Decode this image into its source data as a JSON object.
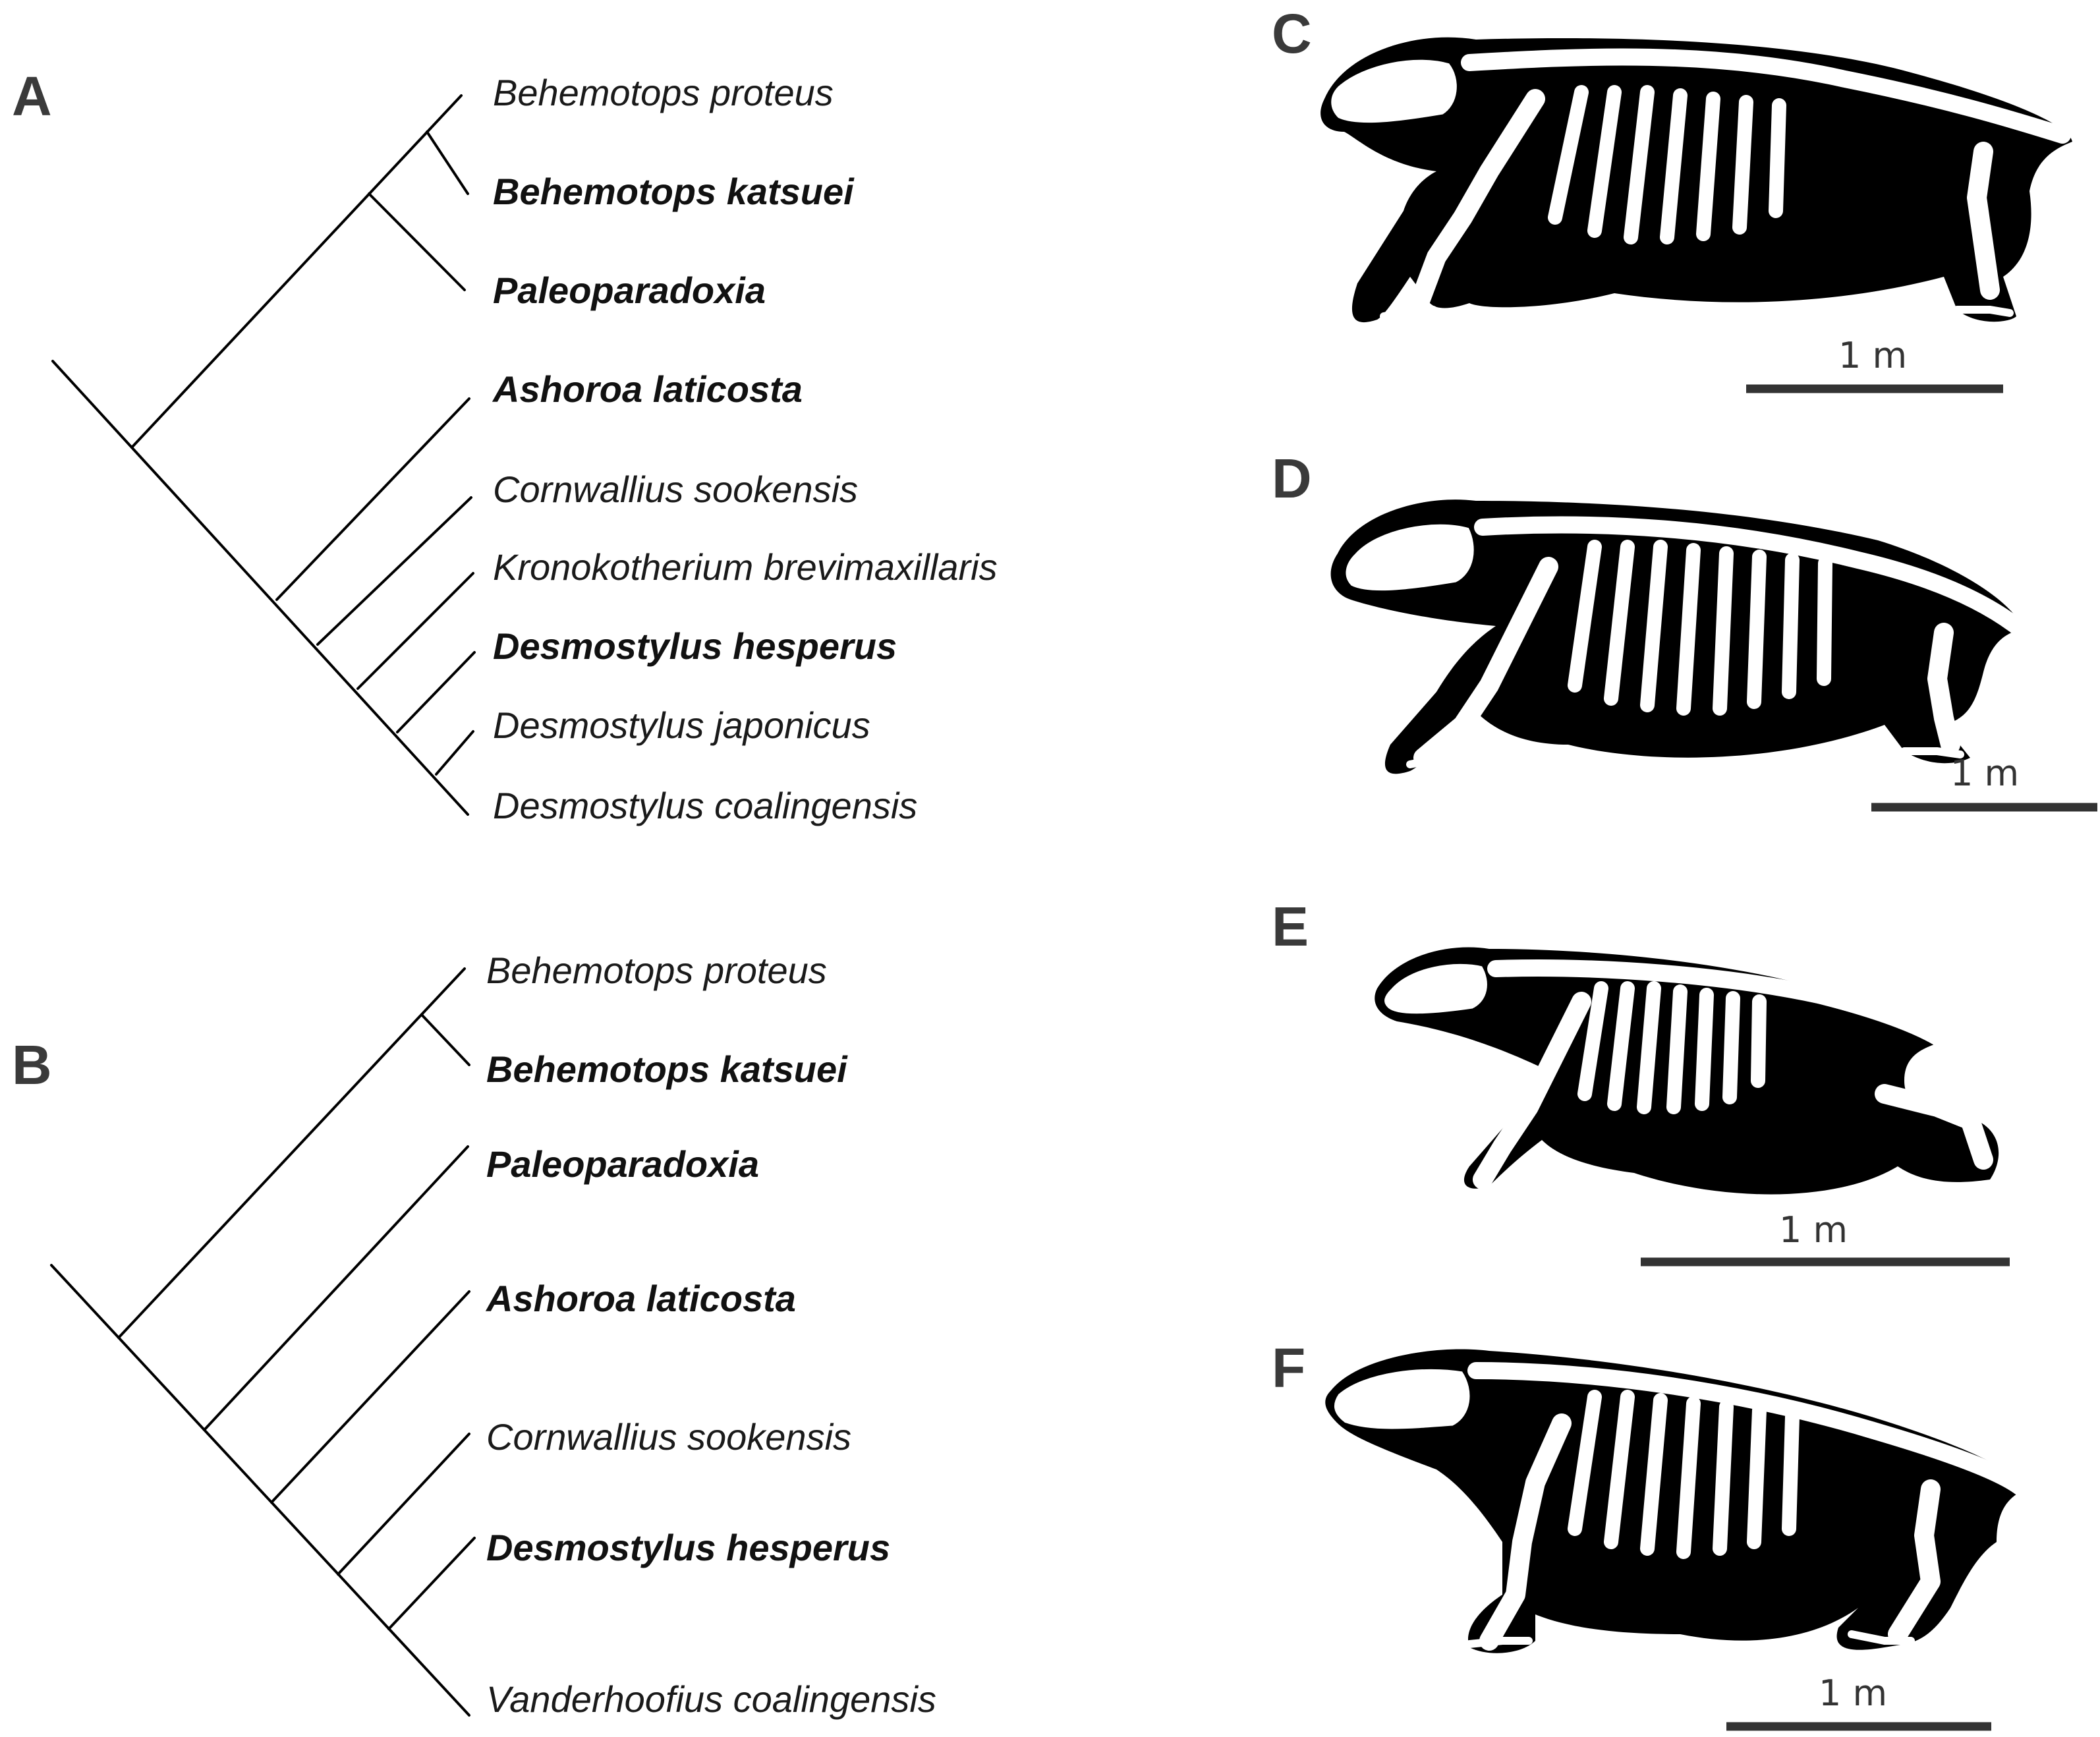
{
  "panels": {
    "A": "A",
    "B": "B",
    "C": "C",
    "D": "D",
    "E": "E",
    "F": "F"
  },
  "tree_a": {
    "taxa": [
      {
        "name": "Behemotops proteus",
        "bold": false
      },
      {
        "name": "Behemotops katsuei",
        "bold": true
      },
      {
        "name": "Paleoparadoxia",
        "bold": true
      },
      {
        "name": "Ashoroa laticosta",
        "bold": true
      },
      {
        "name": "Cornwallius sookensis",
        "bold": false
      },
      {
        "name": "Kronokotherium brevimaxillaris",
        "bold": false
      },
      {
        "name": "Desmostylus hesperus",
        "bold": true
      },
      {
        "name": "Desmostylus japonicus",
        "bold": false
      },
      {
        "name": "Desmostylus coalingensis",
        "bold": false
      }
    ]
  },
  "tree_b": {
    "taxa": [
      {
        "name": "Behemotops proteus",
        "bold": false
      },
      {
        "name": "Behemotops katsuei",
        "bold": true
      },
      {
        "name": "Paleoparadoxia",
        "bold": true
      },
      {
        "name": "Ashoroa laticosta",
        "bold": true
      },
      {
        "name": "Cornwallius sookensis",
        "bold": false
      },
      {
        "name": "Desmostylus hesperus",
        "bold": true
      },
      {
        "name": "Vanderhoofius coalingensis",
        "bold": false
      }
    ]
  },
  "reconstructions": {
    "C": {
      "scale": "1 m"
    },
    "D": {
      "scale": "1 m"
    },
    "E": {
      "scale": "1 m"
    },
    "F": {
      "scale": "1 m"
    }
  }
}
